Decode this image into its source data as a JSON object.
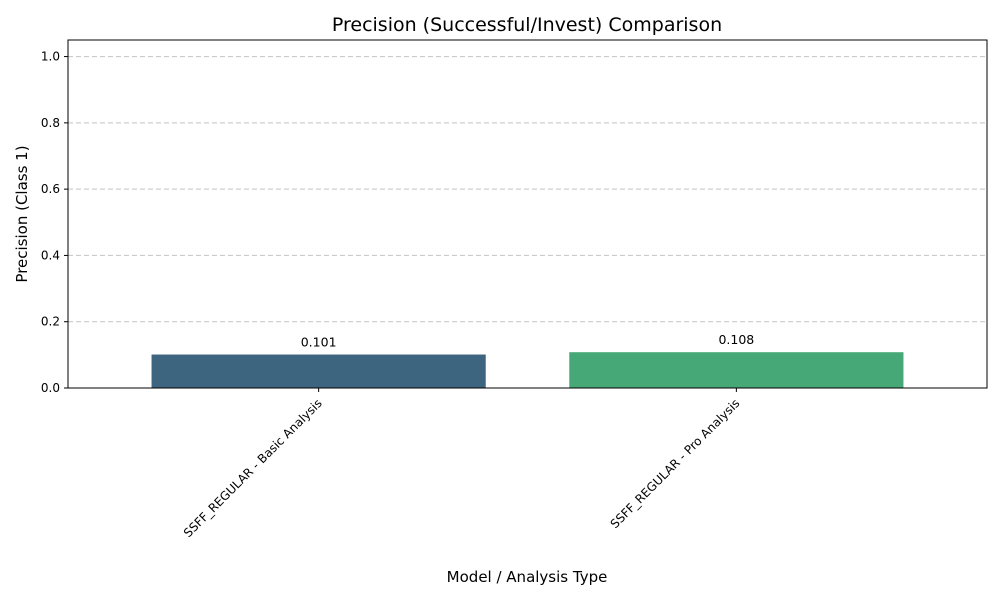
{
  "chart_data": {
    "type": "bar",
    "title": "Precision (Successful/Invest) Comparison",
    "xlabel": "Model / Analysis Type",
    "ylabel": "Precision (Class 1)",
    "categories": [
      "SSFF_REGULAR - Basic Analysis",
      "SSFF_REGULAR - Pro Analysis"
    ],
    "values": [
      0.101,
      0.108
    ],
    "data_labels": [
      "0.101",
      "0.108"
    ],
    "colors": [
      "#3e6580",
      "#47a877"
    ],
    "ylim": [
      0,
      1.05
    ],
    "yticks": [
      0.0,
      0.2,
      0.4,
      0.6,
      0.8,
      1.0
    ],
    "ytick_labels": [
      "0.0",
      "0.2",
      "0.4",
      "0.6",
      "0.8",
      "1.0"
    ],
    "grid": "y-dashed",
    "legend": "none"
  }
}
